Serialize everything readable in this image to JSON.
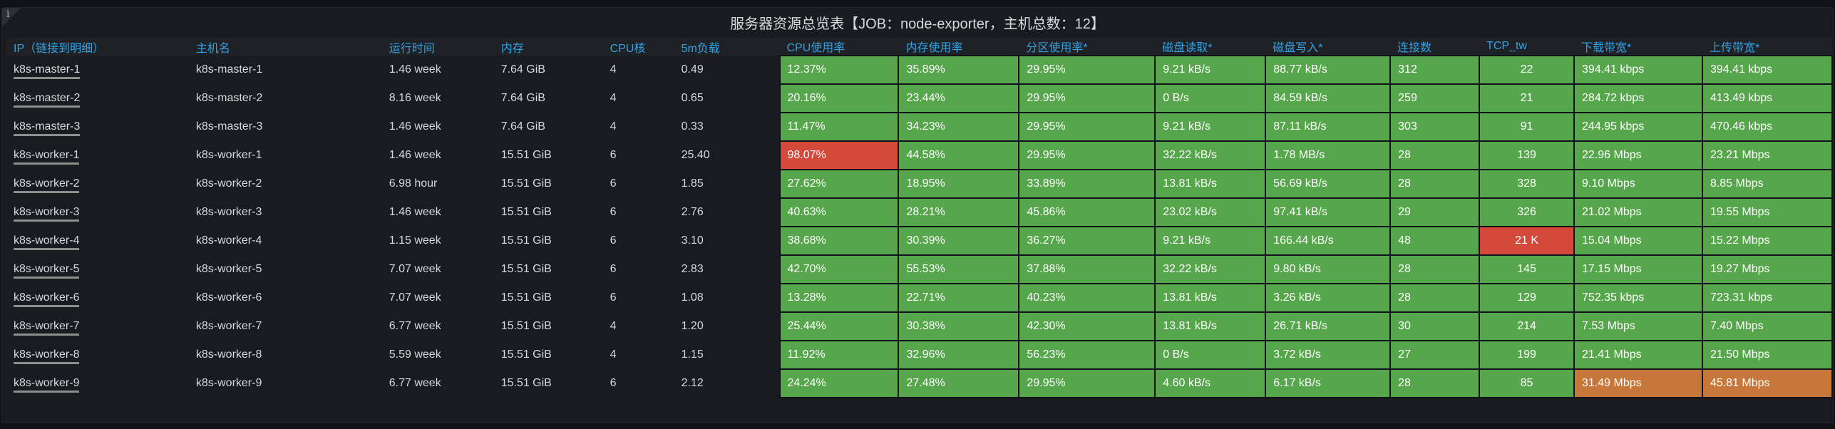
{
  "panel": {
    "title": "服务器资源总览表【JOB：node-exporter，主机总数：12】",
    "info_icon": "i"
  },
  "colors": {
    "ok": "#56a64b",
    "critical": "#d44a3a",
    "warning": "#c8773a",
    "header": "#33a2e5"
  },
  "columns": [
    "IP（链接到明细）",
    "主机名",
    "运行时间",
    "内存",
    "CPU核",
    "5m负载",
    "CPU使用率",
    "内存使用率",
    "分区使用率*",
    "磁盘读取*",
    "磁盘写入*",
    "连接数",
    "TCP_tw",
    "下载带宽*",
    "上传带宽*"
  ],
  "rows": [
    {
      "cells": [
        "k8s-master-1",
        "k8s-master-1",
        "1.46 week",
        "7.64 GiB",
        "4",
        "0.49",
        "12.37%",
        "35.89%",
        "29.95%",
        "9.21 kB/s",
        "88.77 kB/s",
        "312",
        "22",
        "394.41 kbps",
        "394.41 kbps"
      ],
      "status": [
        "ok",
        "ok",
        "ok",
        "ok",
        "ok",
        "ok",
        "ok",
        "ok",
        "ok"
      ]
    },
    {
      "cells": [
        "k8s-master-2",
        "k8s-master-2",
        "8.16 week",
        "7.64 GiB",
        "4",
        "0.65",
        "20.16%",
        "23.44%",
        "29.95%",
        "0 B/s",
        "84.59 kB/s",
        "259",
        "21",
        "284.72 kbps",
        "413.49 kbps"
      ],
      "status": [
        "ok",
        "ok",
        "ok",
        "ok",
        "ok",
        "ok",
        "ok",
        "ok",
        "ok"
      ]
    },
    {
      "cells": [
        "k8s-master-3",
        "k8s-master-3",
        "1.46 week",
        "7.64 GiB",
        "4",
        "0.33",
        "11.47%",
        "34.23%",
        "29.95%",
        "9.21 kB/s",
        "87.11 kB/s",
        "303",
        "91",
        "244.95 kbps",
        "470.46 kbps"
      ],
      "status": [
        "ok",
        "ok",
        "ok",
        "ok",
        "ok",
        "ok",
        "ok",
        "ok",
        "ok"
      ]
    },
    {
      "cells": [
        "k8s-worker-1",
        "k8s-worker-1",
        "1.46 week",
        "15.51 GiB",
        "6",
        "25.40",
        "98.07%",
        "44.58%",
        "29.95%",
        "32.22 kB/s",
        "1.78 MB/s",
        "28",
        "139",
        "22.96 Mbps",
        "23.21 Mbps"
      ],
      "status": [
        "bad",
        "ok",
        "ok",
        "ok",
        "ok",
        "ok",
        "ok",
        "ok",
        "ok"
      ]
    },
    {
      "cells": [
        "k8s-worker-2",
        "k8s-worker-2",
        "6.98 hour",
        "15.51 GiB",
        "6",
        "1.85",
        "27.62%",
        "18.95%",
        "33.89%",
        "13.81 kB/s",
        "56.69 kB/s",
        "28",
        "328",
        "9.10 Mbps",
        "8.85 Mbps"
      ],
      "status": [
        "ok",
        "ok",
        "ok",
        "ok",
        "ok",
        "ok",
        "ok",
        "ok",
        "ok"
      ]
    },
    {
      "cells": [
        "k8s-worker-3",
        "k8s-worker-3",
        "1.46 week",
        "15.51 GiB",
        "6",
        "2.76",
        "40.63%",
        "28.21%",
        "45.86%",
        "23.02 kB/s",
        "97.41 kB/s",
        "29",
        "326",
        "21.02 Mbps",
        "19.55 Mbps"
      ],
      "status": [
        "ok",
        "ok",
        "ok",
        "ok",
        "ok",
        "ok",
        "ok",
        "ok",
        "ok"
      ]
    },
    {
      "cells": [
        "k8s-worker-4",
        "k8s-worker-4",
        "1.15 week",
        "15.51 GiB",
        "6",
        "3.10",
        "38.68%",
        "30.39%",
        "36.27%",
        "9.21 kB/s",
        "166.44 kB/s",
        "48",
        "21 K",
        "15.04 Mbps",
        "15.22 Mbps"
      ],
      "status": [
        "ok",
        "ok",
        "ok",
        "ok",
        "ok",
        "ok",
        "bad",
        "ok",
        "ok"
      ]
    },
    {
      "cells": [
        "k8s-worker-5",
        "k8s-worker-5",
        "7.07 week",
        "15.51 GiB",
        "6",
        "2.83",
        "42.70%",
        "55.53%",
        "37.88%",
        "32.22 kB/s",
        "9.80 kB/s",
        "28",
        "145",
        "17.15 Mbps",
        "19.27 Mbps"
      ],
      "status": [
        "ok",
        "ok",
        "ok",
        "ok",
        "ok",
        "ok",
        "ok",
        "ok",
        "ok"
      ]
    },
    {
      "cells": [
        "k8s-worker-6",
        "k8s-worker-6",
        "7.07 week",
        "15.51 GiB",
        "6",
        "1.08",
        "13.28%",
        "22.71%",
        "40.23%",
        "13.81 kB/s",
        "3.26 kB/s",
        "28",
        "129",
        "752.35 kbps",
        "723.31 kbps"
      ],
      "status": [
        "ok",
        "ok",
        "ok",
        "ok",
        "ok",
        "ok",
        "ok",
        "ok",
        "ok"
      ]
    },
    {
      "cells": [
        "k8s-worker-7",
        "k8s-worker-7",
        "6.77 week",
        "15.51 GiB",
        "4",
        "1.20",
        "25.44%",
        "30.38%",
        "42.30%",
        "13.81 kB/s",
        "26.71 kB/s",
        "30",
        "214",
        "7.53 Mbps",
        "7.40 Mbps"
      ],
      "status": [
        "ok",
        "ok",
        "ok",
        "ok",
        "ok",
        "ok",
        "ok",
        "ok",
        "ok"
      ]
    },
    {
      "cells": [
        "k8s-worker-8",
        "k8s-worker-8",
        "5.59 week",
        "15.51 GiB",
        "4",
        "1.15",
        "11.92%",
        "32.96%",
        "56.23%",
        "0 B/s",
        "3.72 kB/s",
        "27",
        "199",
        "21.41 Mbps",
        "21.50 Mbps"
      ],
      "status": [
        "ok",
        "ok",
        "ok",
        "ok",
        "ok",
        "ok",
        "ok",
        "ok",
        "ok"
      ]
    },
    {
      "cells": [
        "k8s-worker-9",
        "k8s-worker-9",
        "6.77 week",
        "15.51 GiB",
        "6",
        "2.12",
        "24.24%",
        "27.48%",
        "29.95%",
        "4.60 kB/s",
        "6.17 kB/s",
        "28",
        "85",
        "31.49 Mbps",
        "45.81 Mbps"
      ],
      "status": [
        "ok",
        "ok",
        "ok",
        "ok",
        "ok",
        "ok",
        "ok",
        "warn",
        "warn"
      ]
    }
  ]
}
